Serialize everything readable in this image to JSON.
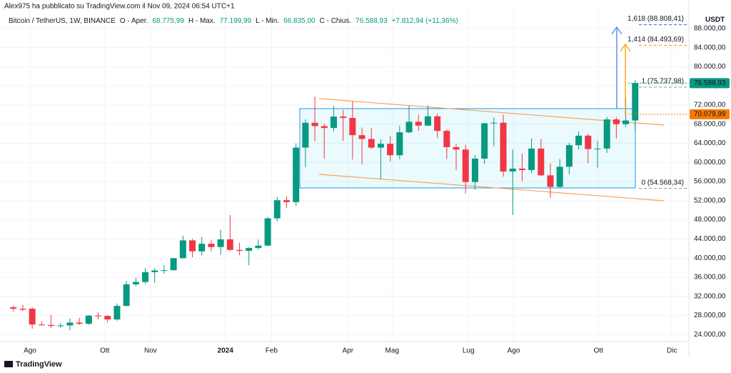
{
  "top_note": "Alex975 ha pubblicato su TradingView.com il Nov 09, 2024 06:54 UTC+1",
  "header": {
    "symbol": "Bitcoin / TetherUS, 1W, BINANCE",
    "items": [
      {
        "label": "O - Aper.",
        "value": "68.775,99"
      },
      {
        "label": "H - Max.",
        "value": "77.199,99"
      },
      {
        "label": "L - Min.",
        "value": "66.835,00"
      },
      {
        "label": "C - Chius.",
        "value": "76.588,93"
      }
    ],
    "change": "+7.812,94 (+11,36%)"
  },
  "footer": "TradingView",
  "chart_data": {
    "type": "candlestick",
    "currency": "USDT",
    "up_color": "#089981",
    "down_color": "#f23645",
    "open": [
      29700,
      29400,
      29400,
      26100,
      26000,
      25800,
      25900,
      26500,
      26250,
      27970,
      27900,
      27150,
      29990,
      34500,
      35000,
      37050,
      37400,
      37450,
      39970,
      43700,
      41400,
      42990,
      42300,
      43900,
      41700,
      41500,
      42100,
      42600,
      48300,
      52100,
      51700,
      63100,
      68300,
      67600,
      67200,
      69600,
      69300,
      65700,
      64900,
      63100,
      63900,
      61500,
      66300,
      68500,
      67700,
      69650,
      66600,
      63200,
      62700,
      55900,
      60800,
      68200,
      68300,
      58100,
      58700,
      58400,
      62900,
      57300,
      54900,
      59100,
      63600,
      65600,
      62800,
      62900,
      69000,
      68000,
      68775.99
    ],
    "high": [
      30050,
      30200,
      29700,
      26800,
      28100,
      26400,
      27400,
      27500,
      28000,
      28600,
      28000,
      30500,
      35200,
      35900,
      37900,
      37900,
      38500,
      40000,
      44700,
      44000,
      44400,
      43800,
      45900,
      49000,
      43200,
      42300,
      43900,
      48600,
      52800,
      52900,
      64000,
      69000,
      73800,
      68100,
      71800,
      71000,
      72800,
      67300,
      67200,
      64800,
      65500,
      67700,
      71900,
      70000,
      71900,
      70200,
      66900,
      63900,
      63700,
      61500,
      68300,
      69400,
      70000,
      62700,
      61800,
      65000,
      64900,
      59800,
      60700,
      64100,
      66500,
      66000,
      64500,
      69500,
      69500,
      73600,
      77199.99
    ],
    "low": [
      28800,
      28900,
      25200,
      25800,
      25400,
      25400,
      24900,
      26000,
      26000,
      27200,
      26500,
      26900,
      29900,
      34100,
      34600,
      34800,
      36700,
      37500,
      39900,
      40200,
      40500,
      41400,
      40700,
      41500,
      40600,
      38500,
      41800,
      42500,
      47700,
      50500,
      50900,
      59000,
      64500,
      60800,
      66500,
      64500,
      60600,
      59600,
      62800,
      56500,
      60200,
      60700,
      66100,
      66600,
      67600,
      65100,
      60700,
      58400,
      53500,
      54300,
      59700,
      63400,
      57000,
      49000,
      56100,
      57800,
      57200,
      52600,
      54600,
      57500,
      62700,
      59800,
      58900,
      62000,
      65000,
      67400,
      66835
    ],
    "close": [
      29400,
      29200,
      26100,
      26000,
      25800,
      25900,
      26500,
      26250,
      27970,
      27900,
      27150,
      29990,
      34500,
      35000,
      37050,
      37400,
      37450,
      39970,
      43700,
      41400,
      42990,
      42300,
      43900,
      41700,
      41500,
      42100,
      42600,
      48300,
      52100,
      51700,
      63100,
      68300,
      67600,
      67200,
      69600,
      69300,
      65700,
      64900,
      63100,
      63900,
      61500,
      66300,
      68500,
      67700,
      69650,
      66600,
      63200,
      62700,
      55900,
      60800,
      68200,
      68300,
      58100,
      58700,
      58400,
      62900,
      57300,
      54900,
      59100,
      63600,
      65600,
      62800,
      62900,
      69000,
      68000,
      68775.99,
      76588.93
    ],
    "xlim": [
      -1.42,
      71.7
    ],
    "xticks": [
      {
        "value": 1.76,
        "label": "Ago"
      },
      {
        "value": 9.7,
        "label": "Ott"
      },
      {
        "value": 14.56,
        "label": "Nov"
      },
      {
        "value": 22.5,
        "label": "2024"
      },
      {
        "value": 27.4,
        "label": "Feb"
      },
      {
        "value": 35.5,
        "label": "Apr"
      },
      {
        "value": 40.2,
        "label": "Mag"
      },
      {
        "value": 48.3,
        "label": "Lug"
      },
      {
        "value": 53.1,
        "label": "Ago"
      },
      {
        "value": 62.1,
        "label": "Ott"
      },
      {
        "value": 69.9,
        "label": "Dic"
      }
    ],
    "ylim": [
      22530,
      92780
    ],
    "yticks": [
      {
        "value": 24000,
        "label": "24.000,00"
      },
      {
        "value": 28000,
        "label": "28.000,00"
      },
      {
        "value": 32000,
        "label": "32.000,00"
      },
      {
        "value": 36000,
        "label": "36.000,00"
      },
      {
        "value": 40000,
        "label": "40.000,00"
      },
      {
        "value": 44000,
        "label": "44.000,00"
      },
      {
        "value": 48000,
        "label": "48.000,00"
      },
      {
        "value": 52000,
        "label": "52.000,00"
      },
      {
        "value": 56000,
        "label": "56.000,00"
      },
      {
        "value": 60000,
        "label": "60.000,00"
      },
      {
        "value": 64000,
        "label": "64.000,00"
      },
      {
        "value": 68000,
        "label": "68.000,00"
      },
      {
        "value": 72000,
        "label": "72.000,00"
      },
      {
        "value": 76000,
        "label": "76.000,00"
      },
      {
        "value": 80000,
        "label": "80.000,00"
      },
      {
        "value": 84000,
        "label": "84.000,00"
      },
      {
        "value": 88000,
        "label": "88.000,00"
      }
    ],
    "grid": true,
    "fib_levels": [
      {
        "value": 88808.41,
        "label": "1,618 (88.808,41)",
        "color": "#2962ff"
      },
      {
        "value": 84493.69,
        "label": "1,414 (84.493,69)",
        "color": "#ff9800"
      },
      {
        "value": 75737.98,
        "label": "1 (75.737,98)",
        "color": "#9598a1"
      },
      {
        "value": 54568.34,
        "label": "0 (54.568,34)",
        "color": "#9598a1"
      }
    ],
    "price_labels": [
      {
        "value": 76588.93,
        "label": "76.588,93",
        "color": "#089981"
      },
      {
        "value": 70079.99,
        "label": "70.079,99",
        "color": "#f57c00"
      }
    ]
  }
}
